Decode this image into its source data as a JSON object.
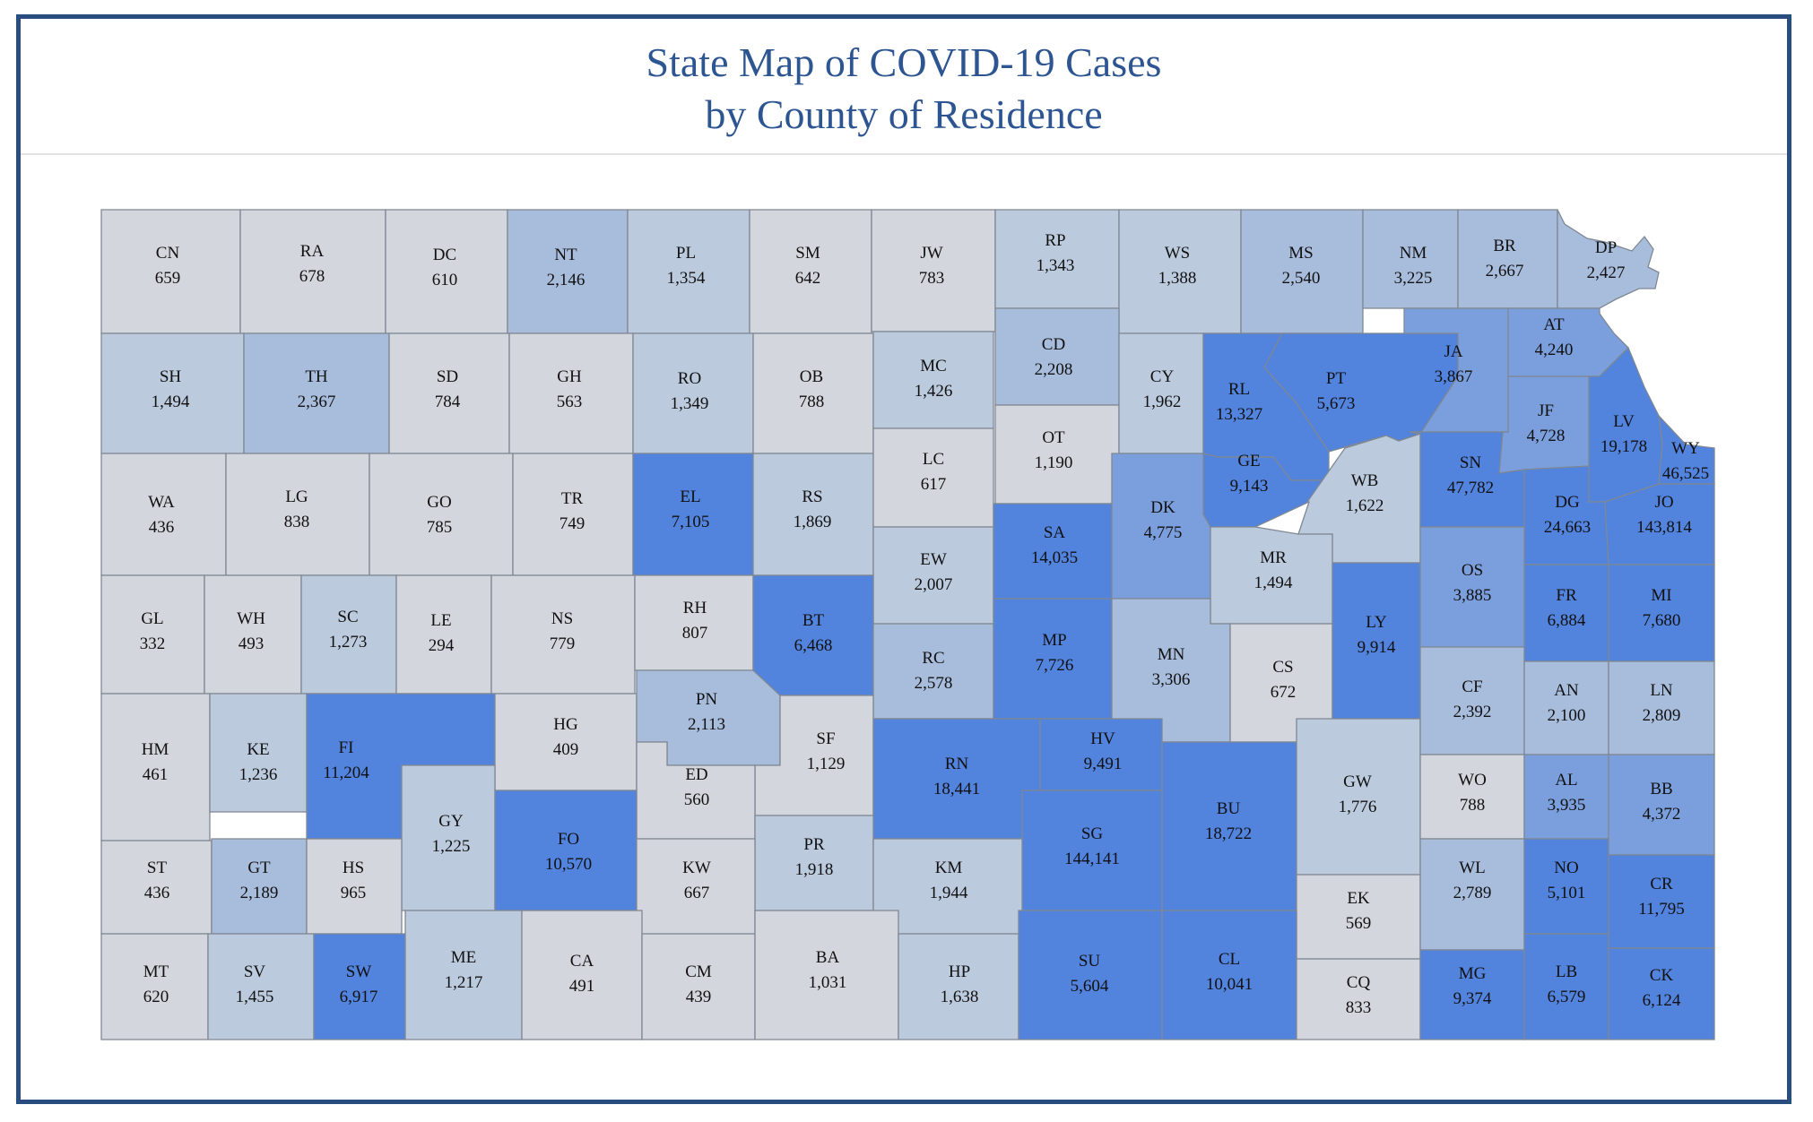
{
  "title": {
    "line1": "State Map of COVID-19 Cases",
    "line2": "by County of Residence"
  },
  "colors": {
    "frame": "#2a4d80",
    "title": "#2d5591",
    "border": "#7f8893",
    "tier1": "#d3d6dc",
    "tier2": "#bccade",
    "tier3": "#a8bcdc",
    "tier4": "#7b9fdc",
    "tier5": "#5283dd"
  },
  "counties": [
    {
      "abbr": "CN",
      "cases": "659"
    },
    {
      "abbr": "RA",
      "cases": "678"
    },
    {
      "abbr": "DC",
      "cases": "610"
    },
    {
      "abbr": "NT",
      "cases": "2,146"
    },
    {
      "abbr": "PL",
      "cases": "1,354"
    },
    {
      "abbr": "SM",
      "cases": "642"
    },
    {
      "abbr": "JW",
      "cases": "783"
    },
    {
      "abbr": "RP",
      "cases": "1,343"
    },
    {
      "abbr": "WS",
      "cases": "1,388"
    },
    {
      "abbr": "MS",
      "cases": "2,540"
    },
    {
      "abbr": "NM",
      "cases": "3,225"
    },
    {
      "abbr": "BR",
      "cases": "2,667"
    },
    {
      "abbr": "DP",
      "cases": "2,427"
    },
    {
      "abbr": "SH",
      "cases": "1,494"
    },
    {
      "abbr": "TH",
      "cases": "2,367"
    },
    {
      "abbr": "SD",
      "cases": "784"
    },
    {
      "abbr": "GH",
      "cases": "563"
    },
    {
      "abbr": "RO",
      "cases": "1,349"
    },
    {
      "abbr": "OB",
      "cases": "788"
    },
    {
      "abbr": "MC",
      "cases": "1,426"
    },
    {
      "abbr": "CD",
      "cases": "2,208"
    },
    {
      "abbr": "OT",
      "cases": "1,190"
    },
    {
      "abbr": "CY",
      "cases": "1,962"
    },
    {
      "abbr": "RL",
      "cases": "13,327"
    },
    {
      "abbr": "PT",
      "cases": "5,673"
    },
    {
      "abbr": "GE",
      "cases": "9,143"
    },
    {
      "abbr": "JA",
      "cases": "3,867"
    },
    {
      "abbr": "AT",
      "cases": "4,240"
    },
    {
      "abbr": "JF",
      "cases": "4,728"
    },
    {
      "abbr": "LV",
      "cases": "19,178"
    },
    {
      "abbr": "WY",
      "cases": "46,525"
    },
    {
      "abbr": "WA",
      "cases": "436"
    },
    {
      "abbr": "LG",
      "cases": "838"
    },
    {
      "abbr": "GO",
      "cases": "785"
    },
    {
      "abbr": "TR",
      "cases": "749"
    },
    {
      "abbr": "EL",
      "cases": "7,105"
    },
    {
      "abbr": "RS",
      "cases": "1,869"
    },
    {
      "abbr": "LC",
      "cases": "617"
    },
    {
      "abbr": "EW",
      "cases": "2,007"
    },
    {
      "abbr": "SA",
      "cases": "14,035"
    },
    {
      "abbr": "DK",
      "cases": "4,775"
    },
    {
      "abbr": "WB",
      "cases": "1,622"
    },
    {
      "abbr": "MR",
      "cases": "1,494"
    },
    {
      "abbr": "SN",
      "cases": "47,782"
    },
    {
      "abbr": "DG",
      "cases": "24,663"
    },
    {
      "abbr": "JO",
      "cases": "143,814"
    },
    {
      "abbr": "GL",
      "cases": "332"
    },
    {
      "abbr": "WH",
      "cases": "493"
    },
    {
      "abbr": "SC",
      "cases": "1,273"
    },
    {
      "abbr": "LE",
      "cases": "294"
    },
    {
      "abbr": "NS",
      "cases": "779"
    },
    {
      "abbr": "RH",
      "cases": "807"
    },
    {
      "abbr": "BT",
      "cases": "6,468"
    },
    {
      "abbr": "RC",
      "cases": "2,578"
    },
    {
      "abbr": "MP",
      "cases": "7,726"
    },
    {
      "abbr": "MN",
      "cases": "3,306"
    },
    {
      "abbr": "CS",
      "cases": "672"
    },
    {
      "abbr": "LY",
      "cases": "9,914"
    },
    {
      "abbr": "OS",
      "cases": "3,885"
    },
    {
      "abbr": "FR",
      "cases": "6,884"
    },
    {
      "abbr": "MI",
      "cases": "7,680"
    },
    {
      "abbr": "HM",
      "cases": "461"
    },
    {
      "abbr": "KE",
      "cases": "1,236"
    },
    {
      "abbr": "FI",
      "cases": "11,204"
    },
    {
      "abbr": "HG",
      "cases": "409"
    },
    {
      "abbr": "PN",
      "cases": "2,113"
    },
    {
      "abbr": "SF",
      "cases": "1,129"
    },
    {
      "abbr": "ED",
      "cases": "560"
    },
    {
      "abbr": "RN",
      "cases": "18,441"
    },
    {
      "abbr": "HV",
      "cases": "9,491"
    },
    {
      "abbr": "GY",
      "cases": "1,225"
    },
    {
      "abbr": "FO",
      "cases": "10,570"
    },
    {
      "abbr": "PR",
      "cases": "1,918"
    },
    {
      "abbr": "SG",
      "cases": "144,141"
    },
    {
      "abbr": "BU",
      "cases": "18,722"
    },
    {
      "abbr": "GW",
      "cases": "1,776"
    },
    {
      "abbr": "CF",
      "cases": "2,392"
    },
    {
      "abbr": "AN",
      "cases": "2,100"
    },
    {
      "abbr": "LN",
      "cases": "2,809"
    },
    {
      "abbr": "WO",
      "cases": "788"
    },
    {
      "abbr": "AL",
      "cases": "3,935"
    },
    {
      "abbr": "BB",
      "cases": "4,372"
    },
    {
      "abbr": "ST",
      "cases": "436"
    },
    {
      "abbr": "GT",
      "cases": "2,189"
    },
    {
      "abbr": "HS",
      "cases": "965"
    },
    {
      "abbr": "KW",
      "cases": "667"
    },
    {
      "abbr": "KM",
      "cases": "1,944"
    },
    {
      "abbr": "EK",
      "cases": "569"
    },
    {
      "abbr": "WL",
      "cases": "2,789"
    },
    {
      "abbr": "NO",
      "cases": "5,101"
    },
    {
      "abbr": "CR",
      "cases": "11,795"
    },
    {
      "abbr": "MT",
      "cases": "620"
    },
    {
      "abbr": "SV",
      "cases": "1,455"
    },
    {
      "abbr": "SW",
      "cases": "6,917"
    },
    {
      "abbr": "ME",
      "cases": "1,217"
    },
    {
      "abbr": "CA",
      "cases": "491"
    },
    {
      "abbr": "CM",
      "cases": "439"
    },
    {
      "abbr": "BA",
      "cases": "1,031"
    },
    {
      "abbr": "HP",
      "cases": "1,638"
    },
    {
      "abbr": "SU",
      "cases": "5,604"
    },
    {
      "abbr": "CL",
      "cases": "10,041"
    },
    {
      "abbr": "CQ",
      "cases": "833"
    },
    {
      "abbr": "MG",
      "cases": "9,374"
    },
    {
      "abbr": "LB",
      "cases": "6,579"
    },
    {
      "abbr": "CK",
      "cases": "6,124"
    }
  ]
}
